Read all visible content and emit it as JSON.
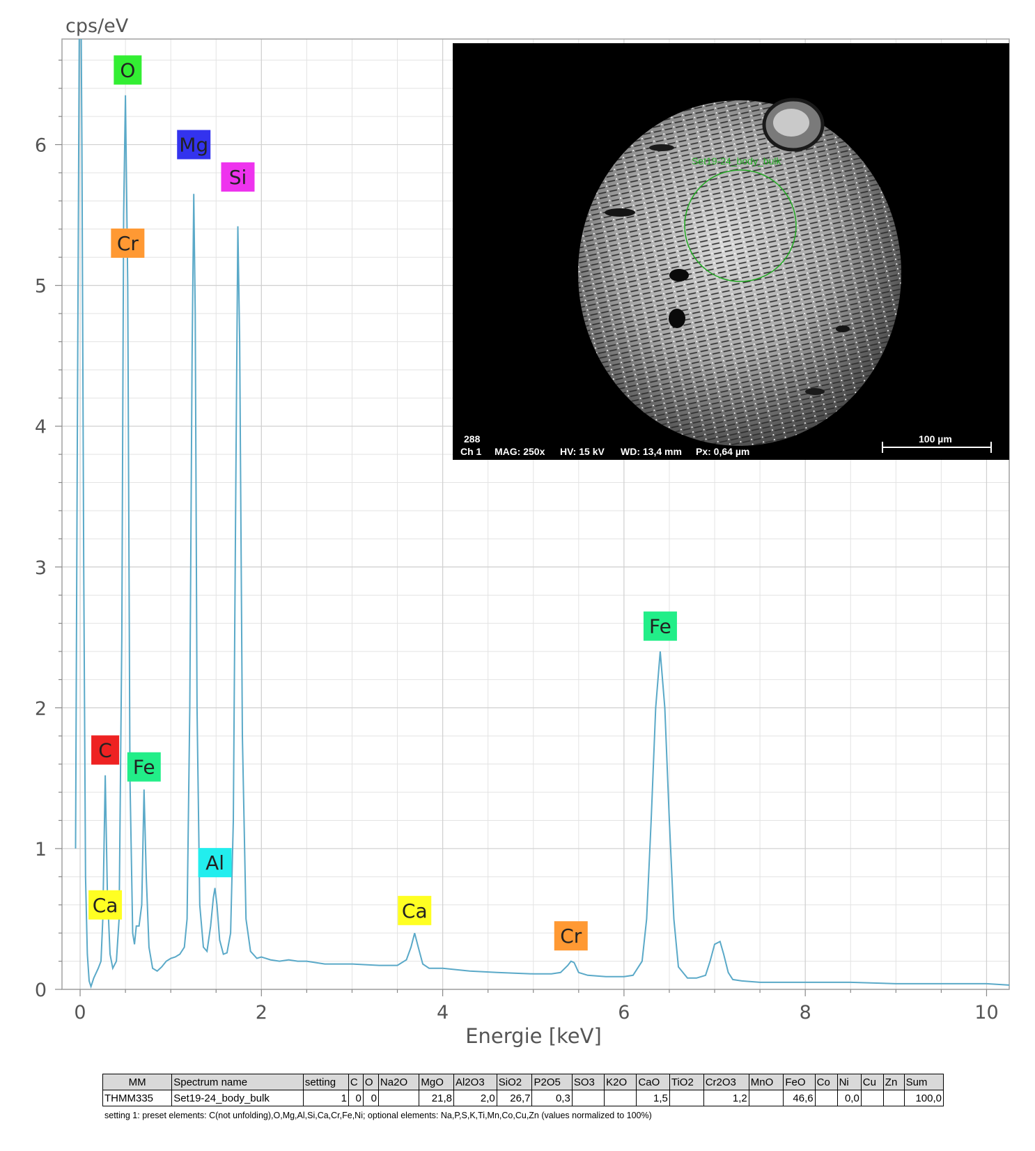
{
  "chart_data": {
    "type": "line",
    "title": "",
    "xlabel": "Energie [keV]",
    "ylabel": "cps/eV",
    "xlim": [
      -0.2,
      10.25
    ],
    "ylim": [
      0,
      6.75
    ],
    "xticks": [
      0,
      2,
      4,
      6,
      8,
      10
    ],
    "yticks": [
      0,
      1,
      2,
      3,
      4,
      5,
      6
    ],
    "grid": true,
    "legend": "none",
    "series": [
      {
        "color": "#5aa9c8",
        "x": [
          -0.05,
          -0.03,
          0.0,
          0.02,
          0.04,
          0.06,
          0.08,
          0.1,
          0.12,
          0.15,
          0.2,
          0.23,
          0.25,
          0.277,
          0.3,
          0.33,
          0.36,
          0.4,
          0.43,
          0.46,
          0.48,
          0.5,
          0.525,
          0.55,
          0.58,
          0.6,
          0.62,
          0.65,
          0.68,
          0.705,
          0.73,
          0.76,
          0.8,
          0.85,
          0.9,
          0.95,
          1.0,
          1.05,
          1.1,
          1.15,
          1.18,
          1.21,
          1.235,
          1.254,
          1.27,
          1.29,
          1.32,
          1.36,
          1.4,
          1.44,
          1.47,
          1.487,
          1.51,
          1.54,
          1.58,
          1.62,
          1.66,
          1.69,
          1.72,
          1.74,
          1.76,
          1.79,
          1.83,
          1.88,
          1.95,
          2.0,
          2.1,
          2.2,
          2.3,
          2.4,
          2.5,
          2.7,
          3.0,
          3.3,
          3.5,
          3.6,
          3.65,
          3.69,
          3.73,
          3.78,
          3.85,
          4.0,
          4.3,
          4.6,
          5.0,
          5.2,
          5.3,
          5.38,
          5.415,
          5.45,
          5.5,
          5.6,
          5.8,
          6.0,
          6.1,
          6.2,
          6.25,
          6.3,
          6.35,
          6.4,
          6.45,
          6.5,
          6.55,
          6.6,
          6.7,
          6.8,
          6.9,
          6.95,
          7.0,
          7.06,
          7.1,
          7.15,
          7.2,
          7.3,
          7.5,
          8.0,
          8.5,
          9.0,
          9.5,
          10.0,
          10.25
        ],
        "y": [
          1.0,
          4.0,
          8.0,
          6.0,
          3.0,
          0.8,
          0.25,
          0.06,
          0.02,
          0.08,
          0.15,
          0.2,
          0.5,
          1.52,
          0.7,
          0.25,
          0.15,
          0.2,
          0.5,
          2.5,
          5.5,
          6.35,
          5.0,
          1.5,
          0.4,
          0.32,
          0.45,
          0.45,
          0.6,
          1.42,
          0.8,
          0.3,
          0.15,
          0.13,
          0.16,
          0.2,
          0.22,
          0.23,
          0.25,
          0.3,
          0.5,
          2.0,
          4.5,
          5.65,
          4.8,
          2.0,
          0.6,
          0.3,
          0.27,
          0.45,
          0.65,
          0.72,
          0.6,
          0.35,
          0.25,
          0.26,
          0.4,
          1.2,
          3.8,
          5.42,
          4.6,
          1.8,
          0.5,
          0.27,
          0.22,
          0.23,
          0.21,
          0.2,
          0.21,
          0.2,
          0.2,
          0.18,
          0.18,
          0.17,
          0.17,
          0.21,
          0.3,
          0.4,
          0.3,
          0.18,
          0.15,
          0.15,
          0.13,
          0.12,
          0.11,
          0.11,
          0.12,
          0.17,
          0.2,
          0.19,
          0.12,
          0.1,
          0.09,
          0.09,
          0.1,
          0.2,
          0.5,
          1.2,
          2.0,
          2.4,
          2.0,
          1.2,
          0.5,
          0.16,
          0.08,
          0.08,
          0.1,
          0.2,
          0.32,
          0.34,
          0.25,
          0.12,
          0.07,
          0.06,
          0.05,
          0.05,
          0.05,
          0.04,
          0.04,
          0.04,
          0.03
        ]
      }
    ],
    "peak_labels": [
      {
        "text": "O",
        "x": 0.525,
        "y": 6.53,
        "color": "#33ee33"
      },
      {
        "text": "Cr",
        "x": 0.525,
        "y": 5.3,
        "color": "#ff9933"
      },
      {
        "text": "Mg",
        "x": 1.254,
        "y": 6.0,
        "color": "#3333ee"
      },
      {
        "text": "Si",
        "x": 1.74,
        "y": 5.77,
        "color": "#ee33ee"
      },
      {
        "text": "C",
        "x": 0.277,
        "y": 1.7,
        "color": "#ee2222"
      },
      {
        "text": "Fe",
        "x": 0.705,
        "y": 1.58,
        "color": "#22ee88"
      },
      {
        "text": "Al",
        "x": 1.487,
        "y": 0.9,
        "color": "#22eeee"
      },
      {
        "text": "Ca",
        "x": 0.277,
        "y": 0.6,
        "color": "#ffff22"
      },
      {
        "text": "Ca",
        "x": 3.69,
        "y": 0.56,
        "color": "#ffff22"
      },
      {
        "text": "Cr",
        "x": 5.415,
        "y": 0.38,
        "color": "#ff9933"
      },
      {
        "text": "Fe",
        "x": 6.4,
        "y": 2.58,
        "color": "#22ee88"
      }
    ]
  },
  "sem_image": {
    "image_id": "288",
    "channel": "Ch 1",
    "mag": "MAG: 250x",
    "hv": "HV: 15 kV",
    "wd": "WD: 13,4 mm",
    "px": "Px: 0,64 µm",
    "scale_bar": "100 µm",
    "region_label": "Set19-24_body_bulk",
    "region_color": "#22aa22"
  },
  "results_table": {
    "headers": [
      "MM",
      "Spectrum name",
      "setting",
      "C",
      "O",
      "Na2O",
      "MgO",
      "Al2O3",
      "SiO2",
      "P2O5",
      "SO3",
      "K2O",
      "CaO",
      "TiO2",
      "Cr2O3",
      "MnO",
      "FeO",
      "Co",
      "Ni",
      "Cu",
      "Zn",
      "Sum"
    ],
    "rows": [
      [
        "THMM335",
        "Set19-24_body_bulk",
        "1",
        "0",
        "0",
        "",
        "21,8",
        "2,0",
        "26,7",
        "0,3",
        "",
        "",
        "1,5",
        "",
        "1,2",
        "",
        "46,6",
        "",
        "0,0",
        "",
        "",
        "100,0"
      ]
    ]
  },
  "footnote": "setting 1: preset elements: C(not unfolding),O,Mg,Al,Si,Ca,Cr,Fe,Ni; optional elements: Na,P,S,K,Ti,Mn,Co,Cu,Zn (values normalized to 100%)"
}
